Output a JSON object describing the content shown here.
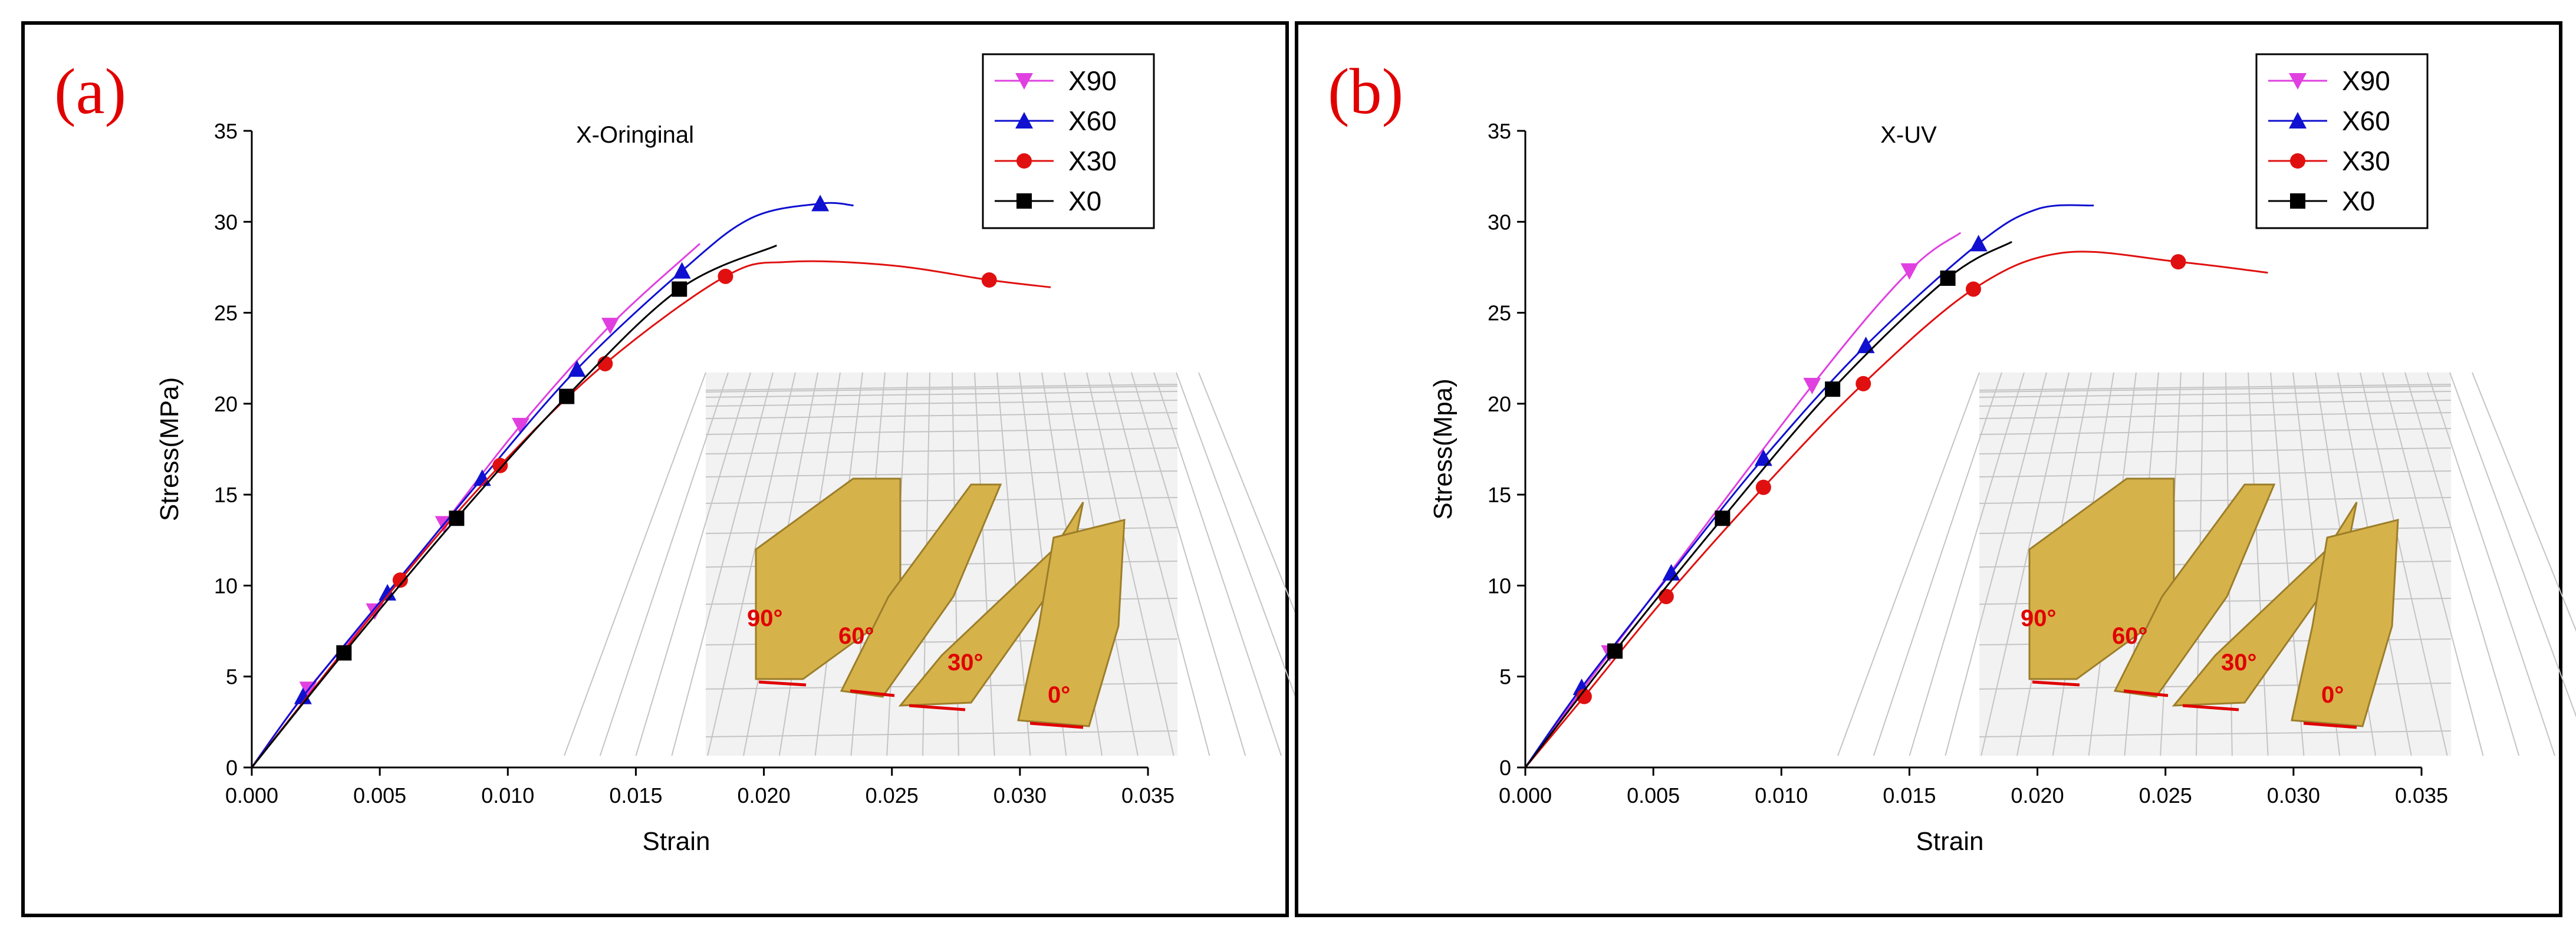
{
  "chart_data": [
    {
      "panel_label": "(a)",
      "type": "line",
      "title": "X-Oringinal",
      "xlabel": "Strain",
      "ylabel": "Stress(MPa)",
      "xlim": [
        0,
        0.035
      ],
      "ylim": [
        0,
        35
      ],
      "xticks": [
        "0.000",
        "0.005",
        "0.010",
        "0.015",
        "0.020",
        "0.025",
        "0.030",
        "0.035"
      ],
      "yticks": [
        "0",
        "5",
        "10",
        "15",
        "20",
        "25",
        "30",
        "35"
      ],
      "legend_position": "top-right",
      "inset_labels": [
        "90°",
        "60°",
        "30°",
        "0°"
      ],
      "series": [
        {
          "name": "X90",
          "color": "#e040e0",
          "marker": "triangle-down",
          "x": [
            0,
            0.0022,
            0.0048,
            0.0075,
            0.0105,
            0.014,
            0.0175
          ],
          "y": [
            0,
            4.3,
            8.6,
            13.4,
            18.8,
            24.3,
            28.8
          ],
          "markers_x": [
            0.0022,
            0.0048,
            0.0075,
            0.0105,
            0.014
          ],
          "markers_y": [
            4.3,
            8.6,
            13.4,
            18.8,
            24.3
          ]
        },
        {
          "name": "X60",
          "color": "#1010d0",
          "marker": "triangle-up",
          "x": [
            0,
            0.002,
            0.0053,
            0.009,
            0.0127,
            0.0168,
            0.0195,
            0.0222,
            0.0235
          ],
          "y": [
            0,
            3.9,
            9.6,
            15.9,
            21.9,
            27.3,
            30.2,
            31.0,
            30.9
          ],
          "markers_x": [
            0.002,
            0.0053,
            0.009,
            0.0127,
            0.0168,
            0.0222
          ],
          "markers_y": [
            3.9,
            9.6,
            15.9,
            21.9,
            27.3,
            31.0
          ]
        },
        {
          "name": "X30",
          "color": "#e01010",
          "marker": "circle",
          "x": [
            0,
            0.0058,
            0.0097,
            0.0138,
            0.0185,
            0.021,
            0.025,
            0.0288,
            0.0312
          ],
          "y": [
            0,
            10.3,
            16.6,
            22.2,
            27.0,
            27.8,
            27.6,
            26.8,
            26.4
          ],
          "markers_x": [
            0.0058,
            0.0097,
            0.0138,
            0.0185,
            0.0288
          ],
          "markers_y": [
            10.3,
            16.6,
            22.2,
            27.0,
            26.8
          ]
        },
        {
          "name": "X0",
          "color": "#000000",
          "marker": "square",
          "x": [
            0,
            0.0036,
            0.008,
            0.0123,
            0.0167,
            0.0205
          ],
          "y": [
            0,
            6.3,
            13.7,
            20.4,
            26.3,
            28.7
          ],
          "markers_x": [
            0.0036,
            0.008,
            0.0123,
            0.0167
          ],
          "markers_y": [
            6.3,
            13.7,
            20.4,
            26.3
          ]
        }
      ]
    },
    {
      "panel_label": "(b)",
      "type": "line",
      "title": "X-UV",
      "xlabel": "Strain",
      "ylabel": "Stress(Mpa)",
      "xlim": [
        0,
        0.035
      ],
      "ylim": [
        0,
        35
      ],
      "xticks": [
        "0.000",
        "0.005",
        "0.010",
        "0.015",
        "0.020",
        "0.025",
        "0.030",
        "0.035"
      ],
      "yticks": [
        "0",
        "5",
        "10",
        "15",
        "20",
        "25",
        "30",
        "35"
      ],
      "legend_position": "top-right",
      "inset_labels": [
        "90°",
        "60°",
        "30°",
        "0°"
      ],
      "series": [
        {
          "name": "X90",
          "color": "#e040e0",
          "marker": "triangle-down",
          "x": [
            0,
            0.0033,
            0.0112,
            0.015,
            0.017
          ],
          "y": [
            0,
            6.3,
            21.0,
            27.3,
            29.4
          ],
          "markers_x": [
            0.0033,
            0.0112,
            0.015
          ],
          "markers_y": [
            6.3,
            21.0,
            27.3
          ]
        },
        {
          "name": "X60",
          "color": "#1010d0",
          "marker": "triangle-up",
          "x": [
            0,
            0.0022,
            0.0057,
            0.0093,
            0.0133,
            0.0177,
            0.02,
            0.0222
          ],
          "y": [
            0,
            4.4,
            10.7,
            17.0,
            23.2,
            28.8,
            30.7,
            30.9
          ],
          "markers_x": [
            0.0022,
            0.0057,
            0.0093,
            0.0133,
            0.0177
          ],
          "markers_y": [
            4.4,
            10.7,
            17.0,
            23.2,
            28.8
          ]
        },
        {
          "name": "X30",
          "color": "#e01010",
          "marker": "circle",
          "x": [
            0,
            0.0023,
            0.0055,
            0.0093,
            0.0132,
            0.0175,
            0.021,
            0.0255,
            0.029
          ],
          "y": [
            0,
            3.9,
            9.4,
            15.4,
            21.1,
            26.3,
            28.3,
            27.8,
            27.2
          ],
          "markers_x": [
            0.0023,
            0.0055,
            0.0093,
            0.0132,
            0.0175,
            0.0255
          ],
          "markers_y": [
            3.9,
            9.4,
            15.4,
            21.1,
            26.3,
            27.8
          ]
        },
        {
          "name": "X0",
          "color": "#000000",
          "marker": "square",
          "x": [
            0,
            0.0035,
            0.0077,
            0.012,
            0.0165,
            0.019
          ],
          "y": [
            0,
            6.4,
            13.7,
            20.8,
            26.9,
            28.9
          ],
          "markers_x": [
            0.0035,
            0.0077,
            0.012,
            0.0165
          ],
          "markers_y": [
            6.4,
            13.7,
            20.8,
            26.9
          ]
        }
      ]
    }
  ]
}
